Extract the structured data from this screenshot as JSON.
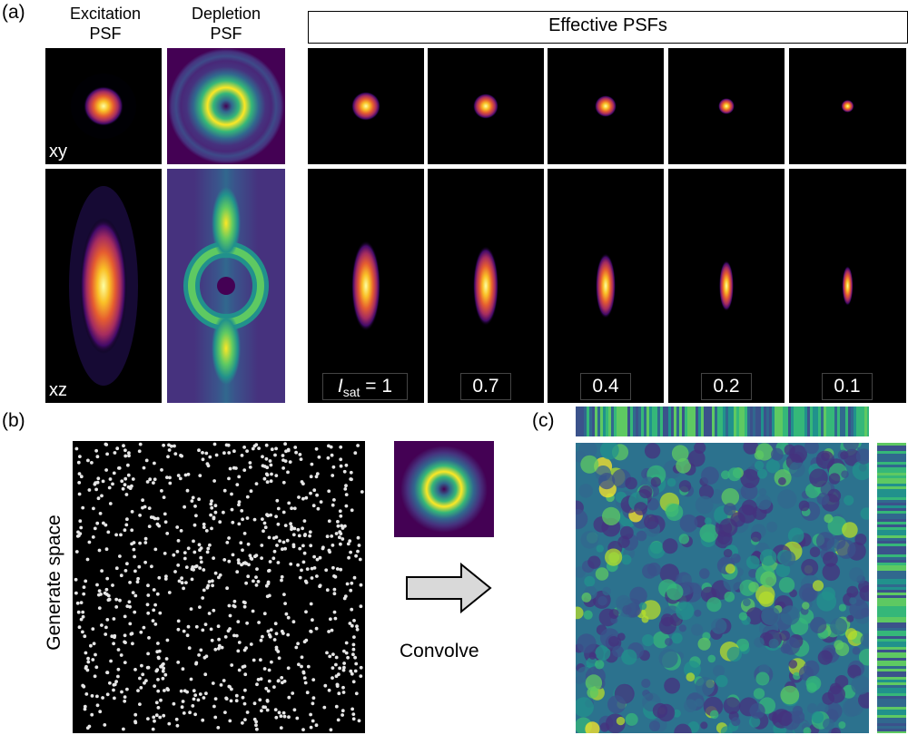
{
  "panel_labels": {
    "a": "(a)",
    "b": "(b)",
    "c": "(c)"
  },
  "headers": {
    "excitation": [
      "Excitation",
      "PSF"
    ],
    "depletion": [
      "Depletion",
      "PSF"
    ],
    "effective": "Effective PSFs"
  },
  "row_labels": {
    "xy": "xy",
    "xz": "xz"
  },
  "isat": {
    "symbol": "I",
    "subscript": "sat",
    "first": " = 1"
  },
  "isat_values": [
    "0.7",
    "0.4",
    "0.2",
    "0.1"
  ],
  "side_label": "Generate space",
  "convolve_label": "Convolve",
  "colors": {
    "inferno_bg": "#000004",
    "viridis_bg": "#440154"
  }
}
